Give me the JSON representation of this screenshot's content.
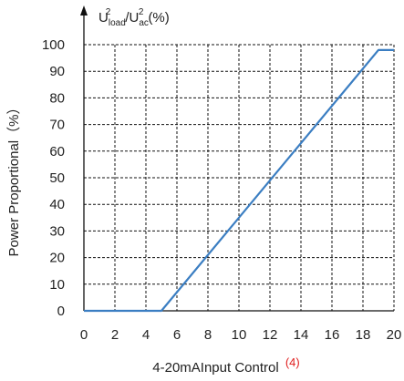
{
  "chart_data": {
    "type": "line",
    "title": "",
    "xlabel": "4-20mAInput Control",
    "xlabel_note": "(4)",
    "ylabel": "Power Proportional（%）",
    "y_axis_formula": {
      "u": "U",
      "sup1": "2",
      "sub1": "load",
      "slash": "/U",
      "sup2": "2",
      "sub2": "ac",
      "tail": "(%)"
    },
    "xlim": [
      0,
      20
    ],
    "ylim": [
      0,
      100
    ],
    "x_ticks": [
      0,
      2,
      4,
      6,
      8,
      10,
      12,
      14,
      16,
      18,
      20
    ],
    "y_ticks": [
      0,
      10,
      20,
      30,
      40,
      50,
      60,
      70,
      80,
      90,
      100
    ],
    "grid": true,
    "grid_style": "dashed",
    "series": [
      {
        "x": [
          0,
          5,
          19,
          20
        ],
        "y": [
          0,
          0,
          98,
          98
        ],
        "color": "#3b7ec2"
      }
    ],
    "note_color": "#e02020",
    "axis_color": "#111111"
  }
}
